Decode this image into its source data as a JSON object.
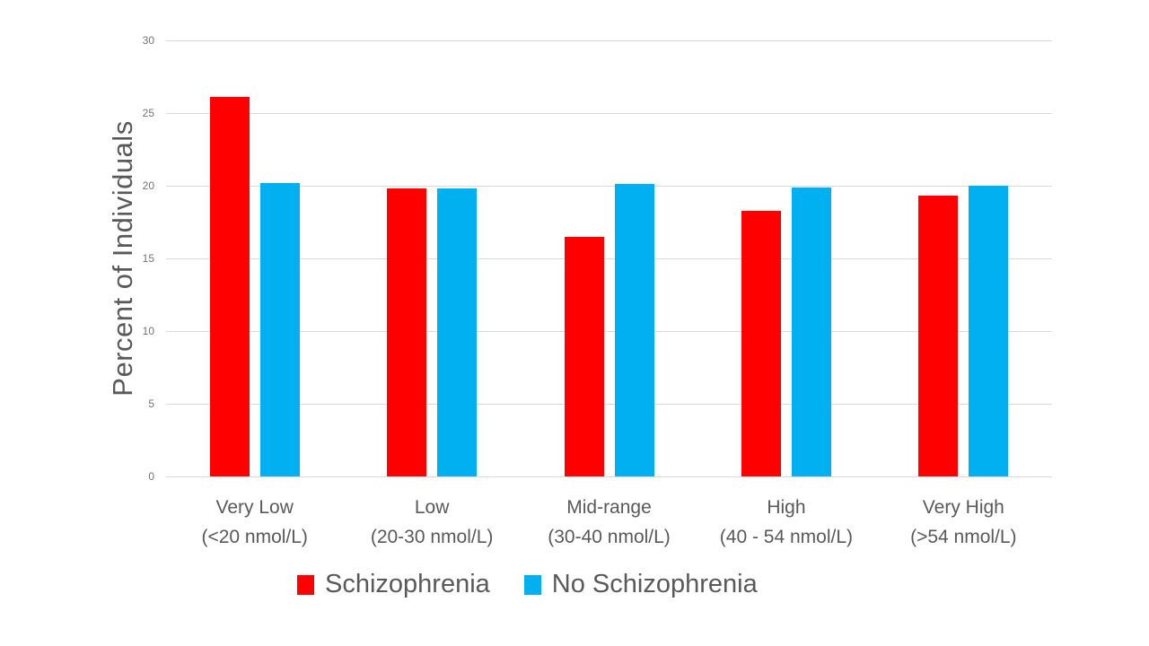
{
  "chart_data": {
    "type": "bar",
    "title": "",
    "xlabel": "",
    "ylabel": "Percent of Individuals",
    "ylim": [
      0,
      30
    ],
    "yticks": [
      0,
      5,
      10,
      15,
      20,
      25,
      30
    ],
    "grid": true,
    "legend_position": "bottom",
    "categories": [
      {
        "label": "Very Low",
        "sublabel": "(<20 nmol/L)"
      },
      {
        "label": "Low",
        "sublabel": "(20-30 nmol/L)"
      },
      {
        "label": "Mid-range",
        "sublabel": "(30-40 nmol/L)"
      },
      {
        "label": "High",
        "sublabel": "(40 - 54 nmol/L)"
      },
      {
        "label": "Very High",
        "sublabel": "(>54 nmol/L)"
      }
    ],
    "series": [
      {
        "name": "Schizophrenia",
        "color": "#FF0000",
        "values": [
          26.1,
          19.8,
          16.5,
          18.3,
          19.3
        ]
      },
      {
        "name": "No Schizophrenia",
        "color": "#00B0F0",
        "values": [
          20.2,
          19.8,
          20.1,
          19.9,
          20.0
        ]
      }
    ],
    "colors": {
      "gridline": "#D9D9D9",
      "tick_text": "#737373",
      "label_text": "#595959",
      "background": "#FFFFFF"
    }
  }
}
